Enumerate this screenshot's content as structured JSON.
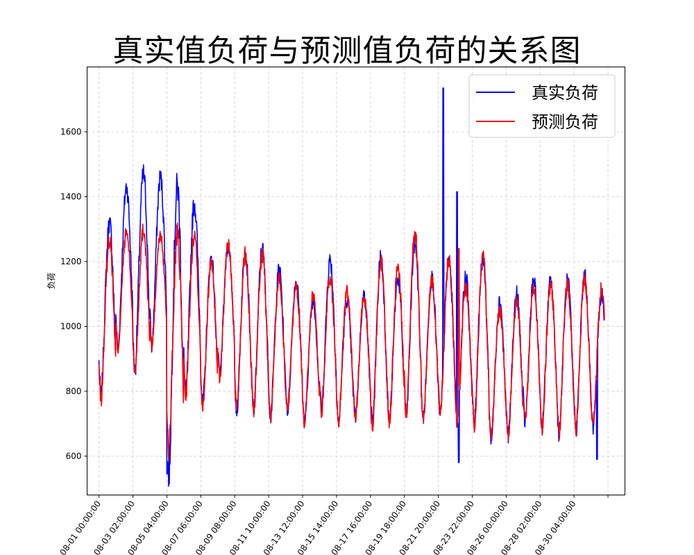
{
  "chart_data": {
    "type": "line",
    "title": "真实值负荷与预测值负荷的关系图",
    "xlabel": "",
    "ylabel": "负荷",
    "grid": true,
    "legend_position": "top-right",
    "ylim": [
      480,
      1800
    ],
    "yticks": [
      600,
      800,
      1000,
      1200,
      1400,
      1600
    ],
    "xlim_days": [
      -0.7,
      31.0
    ],
    "xtick_days": [
      0,
      2,
      4,
      6,
      8,
      10,
      12,
      14,
      16,
      18,
      20,
      22,
      24,
      26,
      28,
      30
    ],
    "xtick_labels": [
      "08-01 00:00:00",
      "08-03 02:00:00",
      "08-05 04:00:00",
      "08-07 06:00:00",
      "08-09 08:00:00",
      "08-11 10:00:00",
      "08-13 12:00:00",
      "08-15 14:00:00",
      "08-17 16:00:00",
      "08-19 18:00:00",
      "08-21 20:00:00",
      "08-23 22:00:00",
      "08-26 00:00:00",
      "08-28 02:00:00",
      "08-30 04:00:00",
      "   "
    ],
    "x_start_day": 0,
    "x_end_day": 29.8,
    "colors": {
      "actual": "#0000ff",
      "predicted": "#ff0000",
      "grid": "#cccccc"
    },
    "daily_profile": {
      "days": [
        0,
        1,
        2,
        3,
        4,
        5,
        6,
        7,
        8,
        9,
        10,
        11,
        12,
        13,
        14,
        15,
        16,
        17,
        18,
        19,
        20,
        21,
        22,
        23,
        24,
        25,
        26,
        27,
        28,
        29
      ],
      "actual_peak": [
        1320,
        1430,
        1470,
        1460,
        1430,
        1380,
        1210,
        1250,
        1230,
        1240,
        1175,
        1140,
        1080,
        1205,
        1080,
        1095,
        1215,
        1150,
        1260,
        1150,
        1205,
        1150,
        1210,
        1080,
        1100,
        1140,
        1140,
        1140,
        1155,
        1100
      ],
      "actual_trough": [
        780,
        930,
        860,
        940,
        540,
        790,
        760,
        850,
        735,
        730,
        720,
        740,
        700,
        740,
        700,
        720,
        690,
        700,
        720,
        715,
        720,
        700,
        690,
        650,
        660,
        700,
        690,
        670,
        680,
        690
      ],
      "predicted_peak": [
        1270,
        1290,
        1300,
        1280,
        1280,
        1290,
        1200,
        1250,
        1220,
        1220,
        1150,
        1120,
        1100,
        1150,
        1110,
        1090,
        1200,
        1190,
        1285,
        1140,
        1210,
        1120,
        1230,
        1050,
        1080,
        1120,
        1130,
        1130,
        1150,
        1120
      ],
      "predicted_trough": [
        770,
        930,
        860,
        940,
        620,
        790,
        755,
        840,
        745,
        740,
        720,
        735,
        700,
        735,
        705,
        715,
        685,
        700,
        720,
        715,
        720,
        700,
        685,
        660,
        660,
        705,
        690,
        670,
        685,
        690
      ]
    },
    "series": [
      {
        "name": "真实负荷",
        "key": "actual"
      },
      {
        "name": "预测负荷",
        "key": "predicted"
      }
    ]
  }
}
